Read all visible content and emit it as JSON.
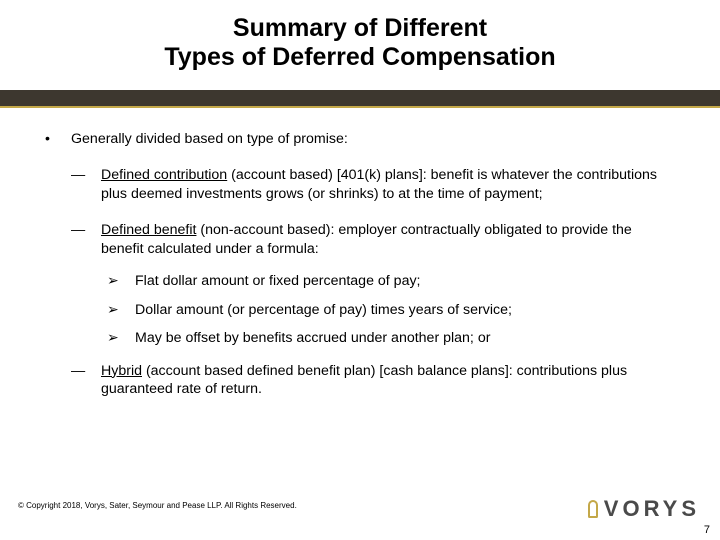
{
  "title": {
    "line1": "Summary of Different",
    "line2": "Types of Deferred Compensation"
  },
  "bullets": {
    "dot": "•",
    "dash": "―",
    "arrow": "➢"
  },
  "intro": "Generally divided based on type of promise:",
  "items": {
    "dc_term": "Defined contribution",
    "dc_rest": " (account based) [401(k) plans]: benefit is whatever the contributions plus deemed investments grows (or shrinks) to at the time of payment;",
    "db_term": "Defined benefit",
    "db_rest": " (non-account based): employer contractually obligated to provide the benefit calculated under a formula:",
    "db_sub1": "Flat dollar amount or fixed percentage of pay;",
    "db_sub2": "Dollar amount (or percentage of pay) times years of service;",
    "db_sub3": "May be offset by benefits accrued under another plan; or",
    "hy_term": "Hybrid",
    "hy_rest": " (account based defined benefit plan) [cash balance plans]: contributions plus guaranteed rate of return."
  },
  "footer": {
    "copyright": "© Copyright 2018, Vorys, Sater, Seymour and Pease LLP. All Rights Reserved.",
    "logo_text": "VORYS",
    "page_number": "7"
  },
  "colors": {
    "bar_dark": "#3d372f",
    "bar_gold": "#c4a849",
    "text": "#000000",
    "background": "#ffffff"
  }
}
